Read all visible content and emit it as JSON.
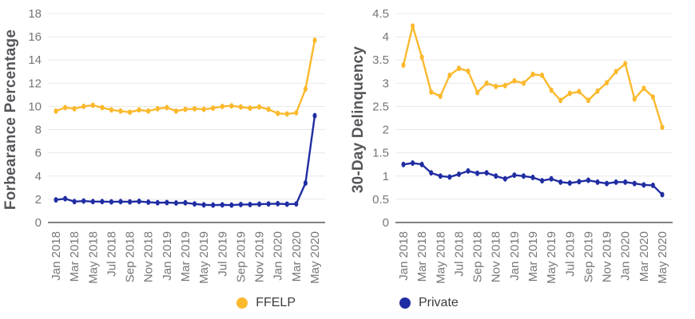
{
  "colors": {
    "ffelp": "#FBB92D",
    "private": "#202DA2",
    "grid": "#E8E8EA",
    "axis_line": "#808285",
    "tick_text": "#767679",
    "axis_title_text": "#55565A",
    "legend_text": "#3B3C40",
    "background": "#FFFFFF"
  },
  "legend": {
    "items": [
      {
        "label": "FFELP",
        "color": "#FBB92D"
      },
      {
        "label": "Private",
        "color": "#202DA2"
      }
    ]
  },
  "chart_data": [
    {
      "type": "line",
      "title": "",
      "ylabel": "Forbearance Percentage",
      "ylim": [
        0,
        18
      ],
      "yticks": [
        0,
        2,
        4,
        6,
        8,
        10,
        12,
        14,
        16,
        18
      ],
      "ytick_labels": [
        "0",
        "2",
        "4",
        "6",
        "8",
        "10",
        "12",
        "14",
        "16",
        "18"
      ],
      "x_tick_labels": [
        "Jan 2018",
        "Mar 2018",
        "May 2018",
        "Jul 2018",
        "Sep 2018",
        "Nov 2018",
        "Jan 2019",
        "Mar 2019",
        "May 2019",
        "Jul 2019",
        "Sep 2019",
        "Nov 2019",
        "Jan 2020",
        "Mar 2020",
        "May 2020"
      ],
      "x_tick_every": 2,
      "num_points": 29,
      "grid": true,
      "legend_position": "bottom",
      "series": [
        {
          "name": "FFELP",
          "color": "#FBB92D",
          "values": [
            9.6,
            9.9,
            9.8,
            10.0,
            10.1,
            9.9,
            9.7,
            9.6,
            9.5,
            9.7,
            9.6,
            9.8,
            9.9,
            9.6,
            9.75,
            9.8,
            9.75,
            9.85,
            10.0,
            10.05,
            9.95,
            9.85,
            9.95,
            9.75,
            9.4,
            9.35,
            9.45,
            11.5,
            15.7
          ]
        },
        {
          "name": "Private",
          "color": "#202DA2",
          "values": [
            1.95,
            2.05,
            1.8,
            1.85,
            1.8,
            1.8,
            1.78,
            1.8,
            1.78,
            1.82,
            1.75,
            1.7,
            1.72,
            1.68,
            1.7,
            1.6,
            1.52,
            1.5,
            1.52,
            1.5,
            1.55,
            1.55,
            1.58,
            1.6,
            1.62,
            1.58,
            1.6,
            3.4,
            9.2
          ]
        }
      ]
    },
    {
      "type": "line",
      "title": "",
      "ylabel": "30-Day Delinquency",
      "ylim": [
        0,
        4.5
      ],
      "yticks": [
        0,
        0.5,
        1,
        1.5,
        2,
        2.5,
        3,
        3.5,
        4,
        4.5
      ],
      "ytick_labels": [
        "0",
        "0.5",
        "1",
        "1.5",
        "2",
        "2.5",
        "3",
        "3.5",
        "4",
        "4.5"
      ],
      "x_tick_labels": [
        "Jan 2018",
        "Mar 2018",
        "May 2018",
        "Jul 2018",
        "Sep 2018",
        "Nov 2018",
        "Jan 2019",
        "Mar 2019",
        "May 2019",
        "Jul 2019",
        "Sep 2019",
        "Nov 2019",
        "Jan 2020",
        "Mar 2020",
        "May 2020"
      ],
      "x_tick_every": 2,
      "num_points": 29,
      "grid": true,
      "legend_position": "bottom",
      "series": [
        {
          "name": "FFELP",
          "color": "#FBB92D",
          "values": [
            3.39,
            4.23,
            3.56,
            2.81,
            2.72,
            3.17,
            3.32,
            3.26,
            2.8,
            3.0,
            2.93,
            2.95,
            3.05,
            3.0,
            3.19,
            3.17,
            2.85,
            2.63,
            2.78,
            2.82,
            2.63,
            2.83,
            3.01,
            3.25,
            3.42,
            2.66,
            2.89,
            2.7,
            2.05
          ]
        },
        {
          "name": "Private",
          "color": "#202DA2",
          "values": [
            1.25,
            1.28,
            1.25,
            1.07,
            1.0,
            0.98,
            1.04,
            1.11,
            1.06,
            1.07,
            1.0,
            0.94,
            1.02,
            1.0,
            0.97,
            0.9,
            0.94,
            0.87,
            0.85,
            0.88,
            0.91,
            0.87,
            0.84,
            0.87,
            0.87,
            0.84,
            0.81,
            0.8,
            0.6
          ]
        }
      ]
    }
  ]
}
